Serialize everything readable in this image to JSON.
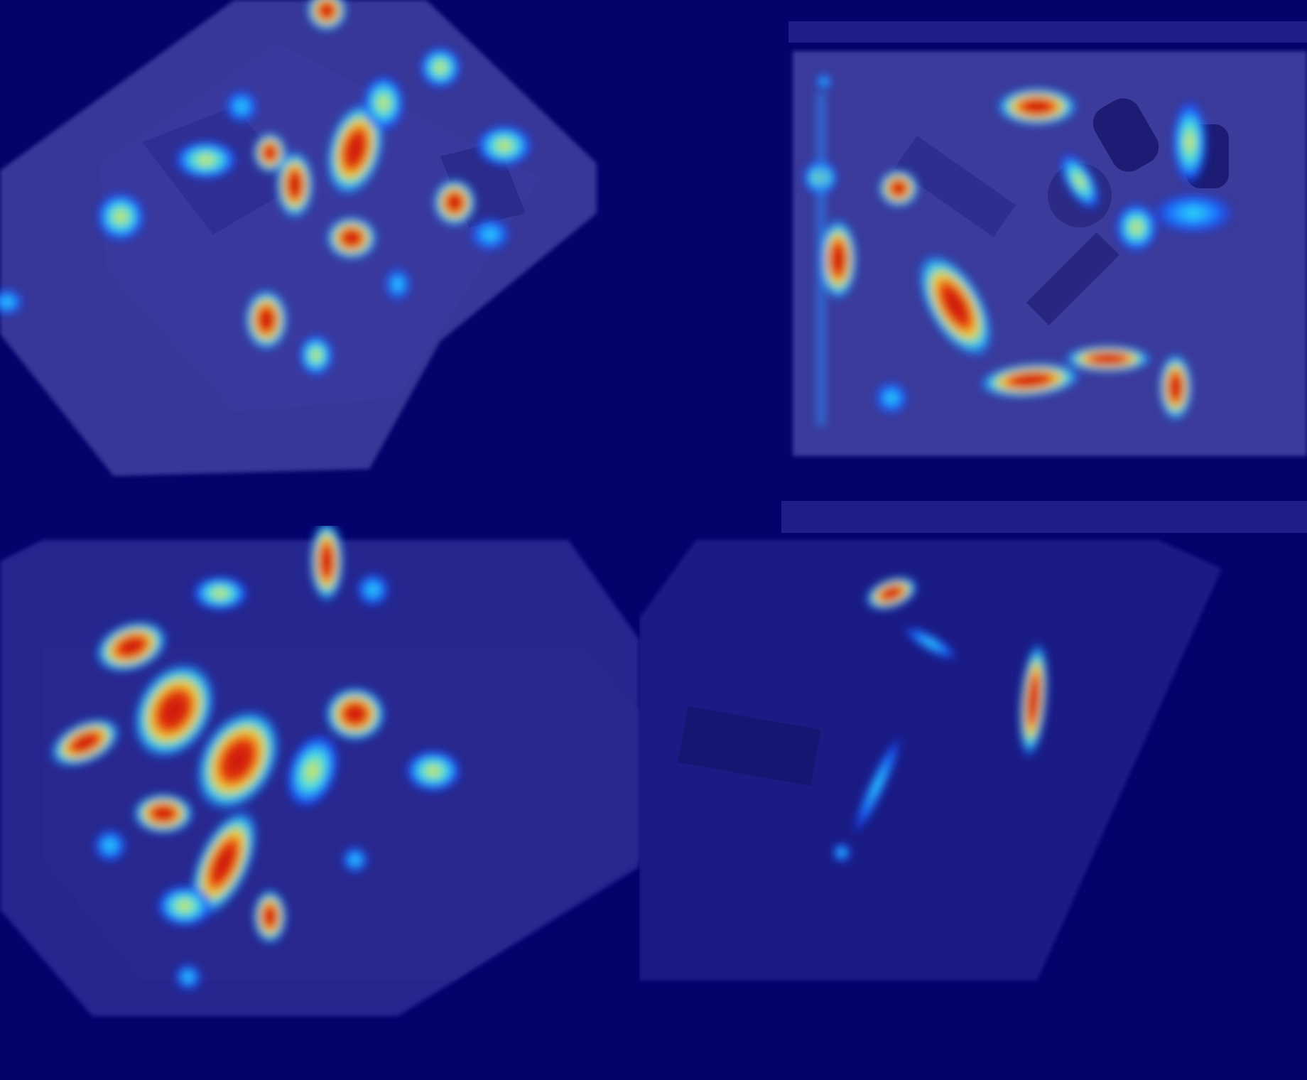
{
  "image": {
    "description_type": "heatmap-overlay-grid",
    "background_color": "#03036b",
    "colormap": [
      "#0a0ae0",
      "#00c8ff",
      "#f5e23a",
      "#d21a0a"
    ],
    "panels": [
      {
        "position": "top-left",
        "overlay": "activation-heatmap"
      },
      {
        "position": "top-right",
        "overlay": "activation-heatmap"
      },
      {
        "position": "bottom-left",
        "overlay": "activation-heatmap"
      },
      {
        "position": "bottom-right",
        "overlay": "activation-heatmap"
      }
    ]
  }
}
